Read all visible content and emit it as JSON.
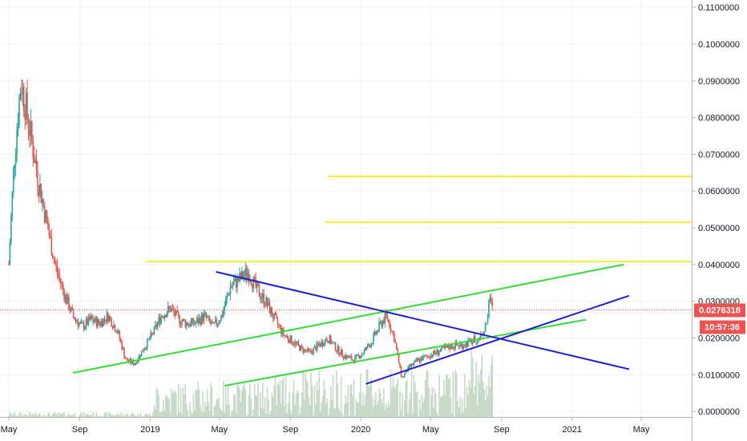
{
  "chart_data": {
    "type": "candlestick",
    "title": "",
    "xlabel": "",
    "ylabel": "",
    "ylim": [
      -0.0015,
      0.112
    ],
    "y_ticks": [
      "0.0000000",
      "0.0100000",
      "0.0200000",
      "0.0300000",
      "0.0400000",
      "0.0500000",
      "0.0600000",
      "0.0700000",
      "0.0800000",
      "0.0900000",
      "0.1000000",
      "0.1100000"
    ],
    "x_ticks": [
      "May",
      "Sep",
      "2019",
      "May",
      "Sep",
      "2020",
      "May",
      "Sep",
      "2021",
      "May"
    ],
    "last_price": "0.0276318",
    "countdown": "10:57:36",
    "grid": true,
    "colors": {
      "up": "#26a69a",
      "down": "#ef5350",
      "green_line": "#33dd33",
      "blue_line": "#1f1fd0",
      "yellow_line": "#f2ef2a",
      "badge": "#ef5350",
      "volume": "#c7d9c7"
    },
    "price_path": [
      [
        "2018-05-01",
        0.04
      ],
      [
        "2018-05-10",
        0.068
      ],
      [
        "2018-05-22",
        0.09
      ],
      [
        "2018-06-05",
        0.078
      ],
      [
        "2018-06-20",
        0.064
      ],
      [
        "2018-07-05",
        0.052
      ],
      [
        "2018-07-20",
        0.04
      ],
      [
        "2018-08-05",
        0.032
      ],
      [
        "2018-08-20",
        0.026
      ],
      [
        "2018-09-05",
        0.023
      ],
      [
        "2018-09-20",
        0.025
      ],
      [
        "2018-10-05",
        0.024
      ],
      [
        "2018-10-20",
        0.026
      ],
      [
        "2018-11-05",
        0.022
      ],
      [
        "2018-11-20",
        0.014
      ],
      [
        "2018-12-05",
        0.013
      ],
      [
        "2018-12-20",
        0.017
      ],
      [
        "2019-01-05",
        0.021
      ],
      [
        "2019-01-20",
        0.026
      ],
      [
        "2019-02-05",
        0.028
      ],
      [
        "2019-02-20",
        0.025
      ],
      [
        "2019-03-05",
        0.024
      ],
      [
        "2019-03-20",
        0.024
      ],
      [
        "2019-04-05",
        0.026
      ],
      [
        "2019-04-20",
        0.023
      ],
      [
        "2019-05-05",
        0.026
      ],
      [
        "2019-05-20",
        0.034
      ],
      [
        "2019-06-05",
        0.036
      ],
      [
        "2019-06-20",
        0.038
      ],
      [
        "2019-07-05",
        0.033
      ],
      [
        "2019-07-20",
        0.03
      ],
      [
        "2019-08-05",
        0.025
      ],
      [
        "2019-08-20",
        0.021
      ],
      [
        "2019-09-05",
        0.019
      ],
      [
        "2019-09-20",
        0.017
      ],
      [
        "2019-10-05",
        0.016
      ],
      [
        "2019-10-20",
        0.018
      ],
      [
        "2019-11-05",
        0.02
      ],
      [
        "2019-11-20",
        0.017
      ],
      [
        "2019-12-05",
        0.015
      ],
      [
        "2019-12-20",
        0.014
      ],
      [
        "2020-01-05",
        0.016
      ],
      [
        "2020-01-20",
        0.019
      ],
      [
        "2020-02-05",
        0.024
      ],
      [
        "2020-02-15",
        0.026
      ],
      [
        "2020-02-28",
        0.02
      ],
      [
        "2020-03-12",
        0.009
      ],
      [
        "2020-03-25",
        0.012
      ],
      [
        "2020-04-10",
        0.014
      ],
      [
        "2020-04-25",
        0.015
      ],
      [
        "2020-05-10",
        0.016
      ],
      [
        "2020-05-25",
        0.017
      ],
      [
        "2020-06-10",
        0.018
      ],
      [
        "2020-06-25",
        0.018
      ],
      [
        "2020-07-10",
        0.019
      ],
      [
        "2020-07-25",
        0.02
      ],
      [
        "2020-08-05",
        0.023
      ],
      [
        "2020-08-12",
        0.031
      ],
      [
        "2020-08-16",
        0.0276
      ]
    ],
    "green_lines": [
      {
        "x1": "2018-08-20",
        "y1": 0.0105,
        "x2": "2021-04-01",
        "y2": 0.04
      },
      {
        "x1": "2019-05-10",
        "y1": 0.007,
        "x2": "2021-01-25",
        "y2": 0.025
      }
    ],
    "blue_lines": [
      {
        "x1": "2019-04-25",
        "y1": 0.038,
        "x2": "2021-04-10",
        "y2": 0.0115
      },
      {
        "x1": "2020-01-10",
        "y1": 0.0075,
        "x2": "2021-04-10",
        "y2": 0.0315
      }
    ],
    "yellow_lines": [
      {
        "x1": "2018-12-25",
        "y": 0.0408
      },
      {
        "x1": "2019-11-01",
        "y": 0.0515
      },
      {
        "x1": "2019-11-05",
        "y": 0.064
      }
    ]
  }
}
